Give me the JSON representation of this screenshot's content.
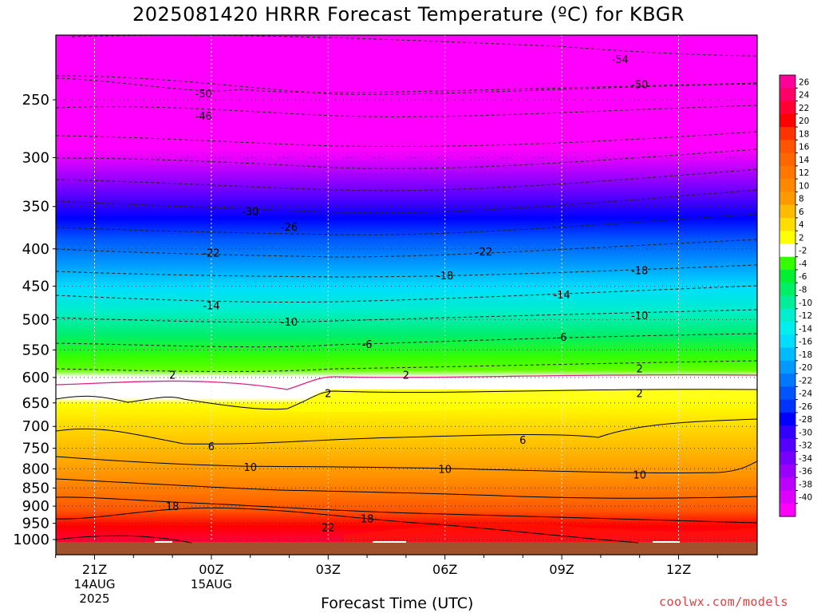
{
  "chart_data": {
    "type": "heatmap",
    "title": "2025081420 HRRR Forecast Temperature (ºC) for KBGR",
    "xlabel": "Forecast Time (UTC)",
    "ylabel": "",
    "credit": "coolwx.com/models",
    "y_scale": "log-pressure (hPa), decreasing upward",
    "y_ticks": [
      "250",
      "300",
      "350",
      "400",
      "450",
      "500",
      "550",
      "600",
      "650",
      "700",
      "750",
      "800",
      "850",
      "900",
      "950",
      "1000"
    ],
    "x_ticks": [
      {
        "hour": "21Z",
        "day": "14AUG",
        "year": "2025"
      },
      {
        "hour": "00Z",
        "day": "15AUG",
        "year": ""
      },
      {
        "hour": "03Z",
        "day": "",
        "year": ""
      },
      {
        "hour": "06Z",
        "day": "",
        "year": ""
      },
      {
        "hour": "09Z",
        "day": "",
        "year": ""
      },
      {
        "hour": "12Z",
        "day": "",
        "year": ""
      }
    ],
    "colorbar": {
      "labels": [
        "26",
        "24",
        "22",
        "20",
        "18",
        "16",
        "14",
        "12",
        "10",
        "8",
        "6",
        "4",
        "2",
        "-2",
        "-4",
        "-6",
        "-8",
        "-10",
        "-12",
        "-14",
        "-16",
        "-18",
        "-20",
        "-22",
        "-24",
        "-26",
        "-28",
        "-30",
        "-32",
        "-34",
        "-36",
        "-38",
        "-40"
      ],
      "colors": [
        "#ff0099",
        "#ff0066",
        "#ff0033",
        "#ff0000",
        "#ff3300",
        "#ff5500",
        "#ff6600",
        "#ff7700",
        "#ff8800",
        "#ff9900",
        "#ffbb00",
        "#ffdd00",
        "#ffff00",
        "#ffffff",
        "#33ff00",
        "#00ee33",
        "#00ee66",
        "#00ee99",
        "#00eecc",
        "#00eeee",
        "#00ddff",
        "#00bbff",
        "#0099ff",
        "#0077ff",
        "#0055ff",
        "#0033ff",
        "#0000ff",
        "#3300ff",
        "#5500ff",
        "#7700ff",
        "#9900ff",
        "#bb00ff",
        "#dd00ff",
        "#ff00ff"
      ]
    },
    "contour_labels": [
      {
        "value": "-54",
        "time": "10.5Z",
        "pressure": 220
      },
      {
        "value": "-50",
        "time": "23.8Z",
        "pressure": 245
      },
      {
        "value": "-50",
        "time": "11.0Z",
        "pressure": 238
      },
      {
        "value": "-46",
        "time": "23.8Z",
        "pressure": 263
      },
      {
        "value": "-30",
        "time": "01.0Z",
        "pressure": 355
      },
      {
        "value": "-26",
        "time": "02.0Z",
        "pressure": 373
      },
      {
        "value": "-22",
        "time": "00.0Z",
        "pressure": 405
      },
      {
        "value": "-22",
        "time": "07.0Z",
        "pressure": 403
      },
      {
        "value": "-18",
        "time": "06.0Z",
        "pressure": 435
      },
      {
        "value": "-18",
        "time": "11.0Z",
        "pressure": 428
      },
      {
        "value": "-14",
        "time": "00.0Z",
        "pressure": 478
      },
      {
        "value": "-14",
        "time": "09.0Z",
        "pressure": 462
      },
      {
        "value": "-10",
        "time": "02.0Z",
        "pressure": 503
      },
      {
        "value": "-10",
        "time": "11.0Z",
        "pressure": 493
      },
      {
        "value": "-6",
        "time": "04.0Z",
        "pressure": 540
      },
      {
        "value": "-6",
        "time": "09.0Z",
        "pressure": 528
      },
      {
        "value": "2",
        "time": "23.0Z",
        "pressure": 595
      },
      {
        "value": "2",
        "time": "05.0Z",
        "pressure": 595
      },
      {
        "value": "2",
        "time": "11.0Z",
        "pressure": 583
      },
      {
        "value": "2",
        "time": "03.0Z",
        "pressure": 630
      },
      {
        "value": "2",
        "time": "11.0Z",
        "pressure": 630
      },
      {
        "value": "6",
        "time": "00.0Z",
        "pressure": 745
      },
      {
        "value": "6",
        "time": "08.0Z",
        "pressure": 730
      },
      {
        "value": "10",
        "time": "01.0Z",
        "pressure": 795
      },
      {
        "value": "10",
        "time": "06.0Z",
        "pressure": 800
      },
      {
        "value": "10",
        "time": "11.0Z",
        "pressure": 815
      },
      {
        "value": "18",
        "time": "23.0Z",
        "pressure": 900
      },
      {
        "value": "18",
        "time": "04.0Z",
        "pressure": 935
      },
      {
        "value": "22",
        "time": "03.0Z",
        "pressure": 962
      }
    ],
    "grid": "dotted"
  }
}
